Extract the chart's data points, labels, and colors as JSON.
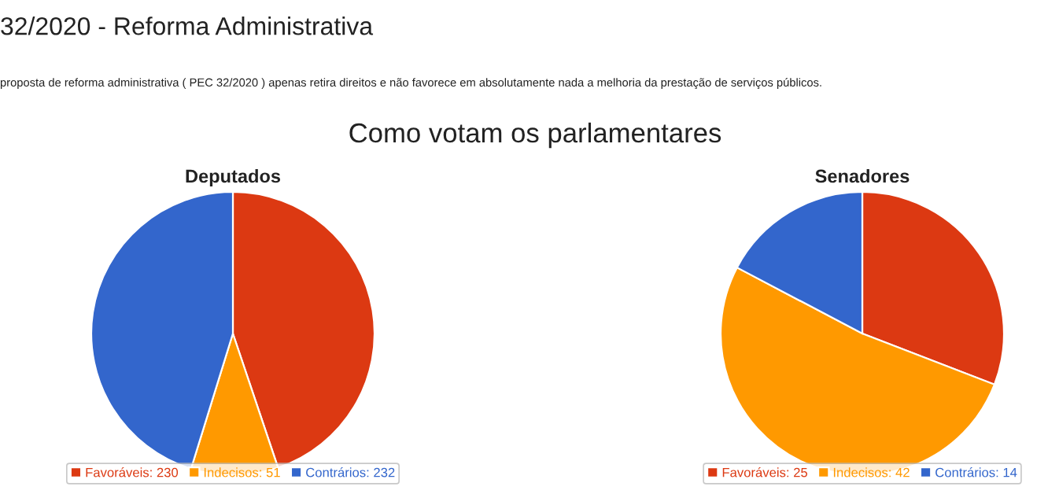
{
  "chart_data": [
    {
      "type": "pie",
      "title": "Deputados",
      "annotations": [
        "32/2020 - Reforma Administrativa",
        "proposta de reforma administrativa ( PEC 32/2020 ) apenas retira direitos e não favorece em absolutamente nada a melhoria da prestação de serviços públicos.",
        "Como votam os parlamentares"
      ],
      "categories": [
        "Favoráveis: 230",
        "Indecisos: 51",
        "Contrários: 232"
      ],
      "values": [
        230,
        51,
        232
      ],
      "colors": [
        "#dc3912",
        "#ff9900",
        "#3366cc"
      ],
      "legend": "bottom"
    },
    {
      "type": "pie",
      "title": "Senadores",
      "categories": [
        "Favoráveis: 25",
        "Indecisos: 42",
        "Contrários: 14"
      ],
      "values": [
        25,
        42,
        14
      ],
      "colors": [
        "#dc3912",
        "#ff9900",
        "#3366cc"
      ],
      "legend": "bottom"
    }
  ]
}
